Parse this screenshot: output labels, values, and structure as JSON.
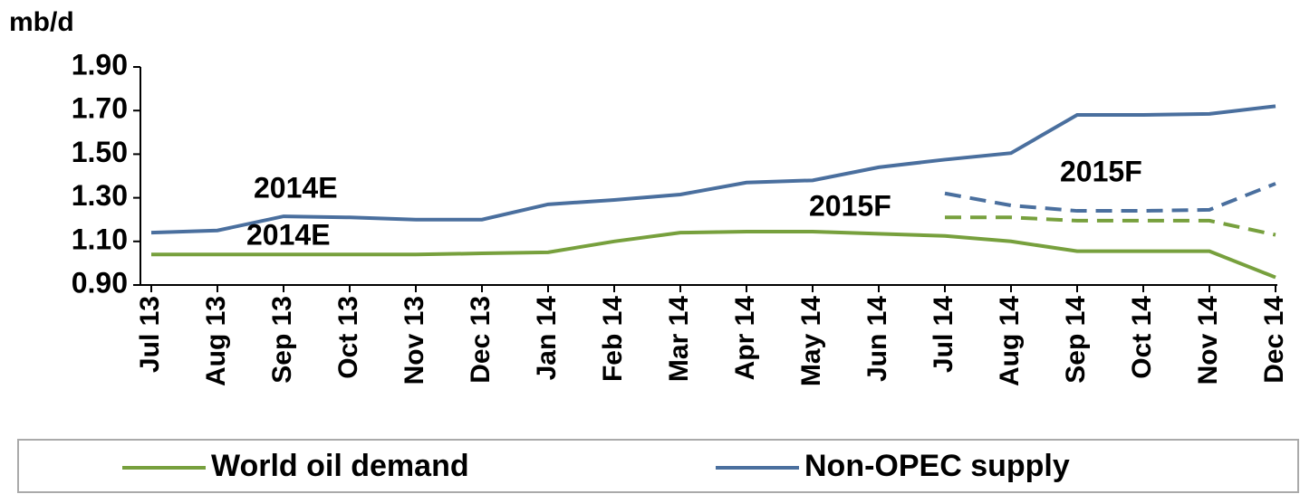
{
  "chart_data": {
    "type": "line",
    "y_label": "mb/d",
    "categories": [
      "Jul 13",
      "Aug 13",
      "Sep 13",
      "Oct 13",
      "Nov 13",
      "Dec 13",
      "Jan 14",
      "Feb 14",
      "Mar 14",
      "Apr 14",
      "May 14",
      "Jun 14",
      "Jul 14",
      "Aug 14",
      "Sep 14",
      "Oct 14",
      "Nov 14",
      "Dec 14"
    ],
    "ylim": [
      0.9,
      1.9
    ],
    "yticks": [
      {
        "value": 0.9,
        "label": "0.90"
      },
      {
        "value": 1.1,
        "label": "1.10"
      },
      {
        "value": 1.3,
        "label": "1.30"
      },
      {
        "value": 1.5,
        "label": "1.50"
      },
      {
        "value": 1.7,
        "label": "1.70"
      },
      {
        "value": 1.9,
        "label": "1.90"
      }
    ],
    "series": [
      {
        "name": "World oil demand",
        "color": "#77a03d",
        "label": "2014E",
        "values": [
          1.04,
          1.04,
          1.04,
          1.04,
          1.04,
          1.045,
          1.05,
          1.1,
          1.14,
          1.145,
          1.145,
          1.135,
          1.125,
          1.1,
          1.055,
          1.055,
          1.055,
          0.935
        ]
      },
      {
        "name": "Non-OPEC supply",
        "color": "#4a6f9e",
        "label": "2014E",
        "values": [
          1.14,
          1.15,
          1.215,
          1.21,
          1.2,
          1.2,
          1.27,
          1.29,
          1.315,
          1.37,
          1.38,
          1.44,
          1.475,
          1.505,
          1.68,
          1.68,
          1.685,
          1.72
        ]
      },
      {
        "color": "#77a03d",
        "dash": true,
        "label": "2015F",
        "values": [
          null,
          null,
          null,
          null,
          null,
          null,
          null,
          null,
          null,
          null,
          null,
          null,
          1.21,
          1.21,
          1.195,
          1.195,
          1.195,
          1.13
        ]
      },
      {
        "color": "#4a6f9e",
        "dash": true,
        "label": "2015F",
        "values": [
          null,
          null,
          null,
          null,
          null,
          null,
          null,
          null,
          null,
          null,
          null,
          null,
          1.32,
          1.265,
          1.24,
          1.24,
          1.245,
          1.365
        ]
      }
    ]
  }
}
